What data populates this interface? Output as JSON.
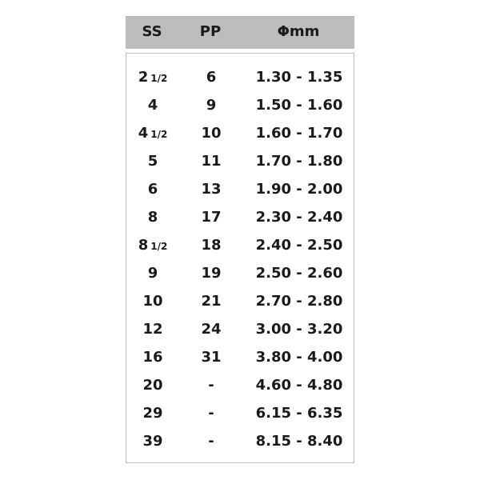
{
  "header": {
    "ss": "SS",
    "pp": "PP",
    "mm": "Φmm"
  },
  "rows": [
    {
      "ss": "2",
      "frac": "1/2",
      "pp": "6",
      "mm": "1.30 - 1.35"
    },
    {
      "ss": "4",
      "frac": "",
      "pp": "9",
      "mm": "1.50 - 1.60"
    },
    {
      "ss": "4",
      "frac": "1/2",
      "pp": "10",
      "mm": "1.60 - 1.70"
    },
    {
      "ss": "5",
      "frac": "",
      "pp": "11",
      "mm": "1.70 - 1.80"
    },
    {
      "ss": "6",
      "frac": "",
      "pp": "13",
      "mm": "1.90 - 2.00"
    },
    {
      "ss": "8",
      "frac": "",
      "pp": "17",
      "mm": "2.30 - 2.40"
    },
    {
      "ss": "8",
      "frac": "1/2",
      "pp": "18",
      "mm": "2.40 - 2.50"
    },
    {
      "ss": "9",
      "frac": "",
      "pp": "19",
      "mm": "2.50 - 2.60"
    },
    {
      "ss": "10",
      "frac": "",
      "pp": "21",
      "mm": "2.70 - 2.80"
    },
    {
      "ss": "12",
      "frac": "",
      "pp": "24",
      "mm": "3.00 - 3.20"
    },
    {
      "ss": "16",
      "frac": "",
      "pp": "31",
      "mm": "3.80 - 4.00"
    },
    {
      "ss": "20",
      "frac": "",
      "pp": "-",
      "mm": "4.60 - 4.80"
    },
    {
      "ss": "29",
      "frac": "",
      "pp": "-",
      "mm": "6.15 - 6.35"
    },
    {
      "ss": "39",
      "frac": "",
      "pp": "-",
      "mm": "8.15 - 8.40"
    }
  ]
}
